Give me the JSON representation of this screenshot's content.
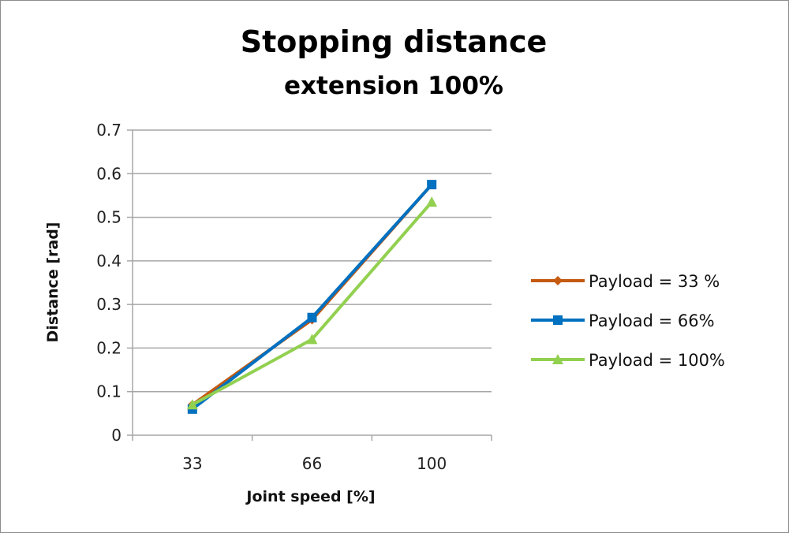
{
  "chart_data": {
    "type": "line",
    "title": "Stopping distance",
    "subtitle": "extension 100%",
    "xlabel": "Joint speed [%]",
    "ylabel": "Distance [rad]",
    "categories": [
      "33",
      "66",
      "100"
    ],
    "ylim": [
      0,
      0.7
    ],
    "yticks": [
      "0",
      "0.1",
      "0.2",
      "0.3",
      "0.4",
      "0.5",
      "0.6",
      "0.7"
    ],
    "grid": true,
    "legend_position": "right",
    "series": [
      {
        "name": "Payload = 33 %",
        "values": [
          0.07,
          0.265,
          0.575
        ],
        "color": "#c55a11",
        "marker": "diamond"
      },
      {
        "name": "Payload =  66%",
        "values": [
          0.06,
          0.27,
          0.575
        ],
        "color": "#0070c0",
        "marker": "square"
      },
      {
        "name": "Payload =  100%",
        "values": [
          0.07,
          0.22,
          0.535
        ],
        "color": "#92d050",
        "marker": "triangle"
      }
    ]
  }
}
